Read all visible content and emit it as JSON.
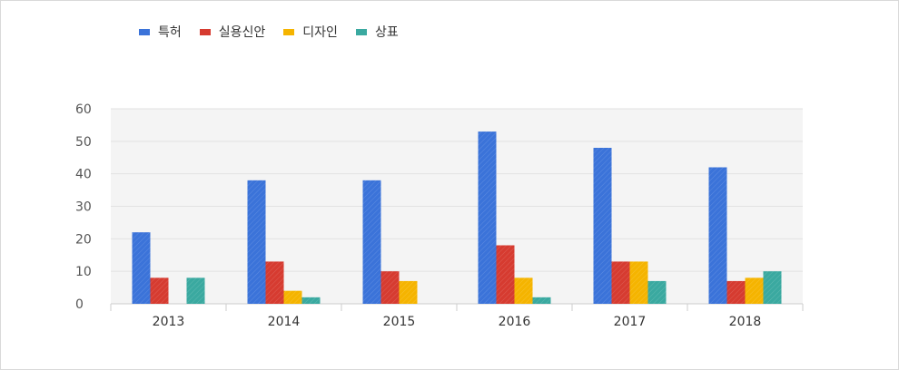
{
  "chart_data": {
    "type": "bar",
    "categories": [
      "2013",
      "2014",
      "2015",
      "2016",
      "2017",
      "2018"
    ],
    "series": [
      {
        "name": "특허",
        "color": "#3b73d9",
        "values": [
          22,
          38,
          38,
          53,
          48,
          42
        ]
      },
      {
        "name": "실용신안",
        "color": "#d63b30",
        "values": [
          8,
          13,
          10,
          18,
          13,
          7
        ]
      },
      {
        "name": "디자인",
        "color": "#f5b400",
        "values": [
          0,
          4,
          7,
          8,
          13,
          8
        ]
      },
      {
        "name": "상표",
        "color": "#3aa9a0",
        "values": [
          8,
          2,
          0,
          2,
          7,
          10
        ]
      }
    ],
    "ylim": [
      0,
      60
    ],
    "yticks": [
      0,
      10,
      20,
      30,
      40,
      50,
      60
    ],
    "grid": true,
    "legend_position": "top-left"
  }
}
